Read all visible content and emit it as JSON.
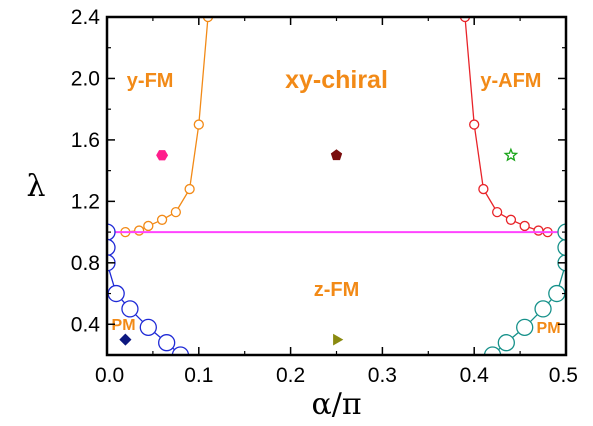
{
  "chart_data": {
    "type": "scatter",
    "title": "",
    "xlabel": "α/π",
    "ylabel": "λ",
    "xlim": [
      0.0,
      0.5
    ],
    "ylim": [
      0.2,
      2.4
    ],
    "grid": false,
    "x_ticks": [
      0.0,
      0.1,
      0.2,
      0.3,
      0.4,
      0.5
    ],
    "x_tick_labels": [
      "0.0",
      "0.1",
      "0.2",
      "0.3",
      "0.4",
      "0.5"
    ],
    "y_ticks": [
      0.4,
      0.8,
      1.2,
      1.6,
      2.0,
      2.4
    ],
    "y_tick_labels": [
      "0.4",
      "0.8",
      "1.2",
      "1.6",
      "2.0",
      "2.4"
    ],
    "y_minor_ticks": [
      0.2,
      0.6,
      1.0,
      1.4,
      1.8,
      2.2
    ],
    "x_minor_ticks": [
      0.05,
      0.15,
      0.25,
      0.35,
      0.45
    ],
    "series": [
      {
        "id": "orange-boundary",
        "color": "#f28a17",
        "marker": "open-circle-small",
        "x": [
          0.0,
          0.02,
          0.035,
          0.045,
          0.06,
          0.075,
          0.09,
          0.1,
          0.11
        ],
        "y": [
          1.0,
          1.0,
          1.01,
          1.04,
          1.08,
          1.13,
          1.28,
          1.7,
          2.4
        ]
      },
      {
        "id": "red-boundary",
        "color": "#e8242a",
        "marker": "open-circle-small",
        "x": [
          0.39,
          0.4,
          0.41,
          0.425,
          0.44,
          0.455,
          0.47,
          0.48,
          0.5
        ],
        "y": [
          2.4,
          1.7,
          1.28,
          1.13,
          1.08,
          1.04,
          1.01,
          1.0,
          1.0
        ]
      },
      {
        "id": "magenta-line",
        "color": "#ff44ff",
        "marker": "none",
        "x": [
          0.0,
          0.5
        ],
        "y": [
          1.0,
          1.0
        ]
      },
      {
        "id": "blue-boundary",
        "color": "#1f2ad6",
        "marker": "open-circle-large",
        "x": [
          0.0,
          0.0,
          0.0,
          0.01,
          0.025,
          0.045,
          0.065,
          0.08
        ],
        "y": [
          1.0,
          0.9,
          0.8,
          0.6,
          0.5,
          0.38,
          0.28,
          0.2
        ]
      },
      {
        "id": "teal-boundary",
        "color": "#16918a",
        "marker": "open-circle-large",
        "x": [
          0.42,
          0.435,
          0.455,
          0.475,
          0.49,
          0.5,
          0.5,
          0.5
        ],
        "y": [
          0.2,
          0.28,
          0.38,
          0.5,
          0.6,
          0.8,
          0.9,
          1.0
        ]
      }
    ],
    "points": [
      {
        "id": "point-y-fm",
        "x": 0.06,
        "y": 1.5,
        "shape": "hexagon",
        "color": "#ff1e8c"
      },
      {
        "id": "point-xy-chiral",
        "x": 0.25,
        "y": 1.5,
        "shape": "pentagon",
        "color": "#7a0c0c"
      },
      {
        "id": "point-y-afm",
        "x": 0.44,
        "y": 1.5,
        "shape": "star",
        "color": "#1aa51a"
      },
      {
        "id": "point-pm",
        "x": 0.02,
        "y": 0.3,
        "shape": "diamond",
        "color": "#0d1880"
      },
      {
        "id": "point-z-fm",
        "x": 0.25,
        "y": 0.3,
        "shape": "triangle-right",
        "color": "#8a8a10"
      }
    ],
    "annotations": [
      {
        "id": "label-y-fm",
        "text": "y-FM",
        "x": 0.047,
        "y": 1.98,
        "size": 20
      },
      {
        "id": "label-xy-chiral",
        "text": "xy-chiral",
        "x": 0.25,
        "y": 1.98,
        "size": 25
      },
      {
        "id": "label-y-afm",
        "text": "y-AFM",
        "x": 0.44,
        "y": 1.98,
        "size": 20
      },
      {
        "id": "label-z-fm",
        "text": "z-FM",
        "x": 0.25,
        "y": 0.62,
        "size": 20
      },
      {
        "id": "label-pm-left",
        "text": "PM",
        "x": 0.018,
        "y": 0.39,
        "size": 16
      },
      {
        "id": "label-pm-right",
        "text": "PM",
        "x": 0.481,
        "y": 0.37,
        "size": 16
      }
    ]
  }
}
